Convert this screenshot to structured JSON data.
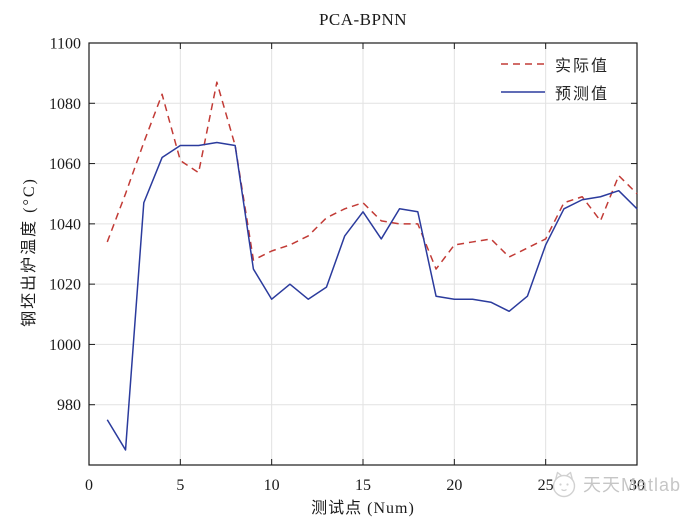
{
  "chart_data": {
    "type": "line",
    "title": "PCA-BPNN",
    "xlabel": "测试点 (Num)",
    "ylabel": "钢坯出炉温度 (°C)",
    "xlim": [
      0,
      30
    ],
    "ylim": [
      960,
      1100
    ],
    "xticks": [
      0,
      5,
      10,
      15,
      20,
      25,
      30
    ],
    "yticks": [
      980,
      1000,
      1020,
      1040,
      1060,
      1080,
      1100
    ],
    "grid": true,
    "legend_position": "top-right",
    "x": [
      1,
      2,
      3,
      4,
      5,
      6,
      7,
      8,
      9,
      10,
      11,
      12,
      13,
      14,
      15,
      16,
      17,
      18,
      19,
      20,
      21,
      22,
      23,
      24,
      25,
      26,
      27,
      28,
      29,
      30
    ],
    "series": [
      {
        "name": "实际值",
        "style": "dashed",
        "color": "#c23b36",
        "values": [
          1034,
          1050,
          1067,
          1083,
          1061,
          1057,
          1087,
          1066,
          1028,
          1031,
          1033,
          1036,
          1042,
          1045,
          1047,
          1041,
          1040,
          1040,
          1025,
          1033,
          1034,
          1035,
          1029,
          1032,
          1035,
          1047,
          1049,
          1041,
          1056,
          1050
        ]
      },
      {
        "name": "预测值",
        "style": "solid",
        "color": "#2b3b9d",
        "values": [
          975,
          965,
          1047,
          1062,
          1066,
          1066,
          1067,
          1066,
          1025,
          1015,
          1020,
          1015,
          1019,
          1036,
          1044,
          1035,
          1045,
          1044,
          1016,
          1015,
          1015,
          1014,
          1011,
          1016,
          1033,
          1045,
          1048,
          1049,
          1051,
          1045
        ]
      }
    ]
  },
  "watermark": {
    "text": "天天Matlab",
    "logo": "cat-logo",
    "color": "#c6c6c6"
  }
}
